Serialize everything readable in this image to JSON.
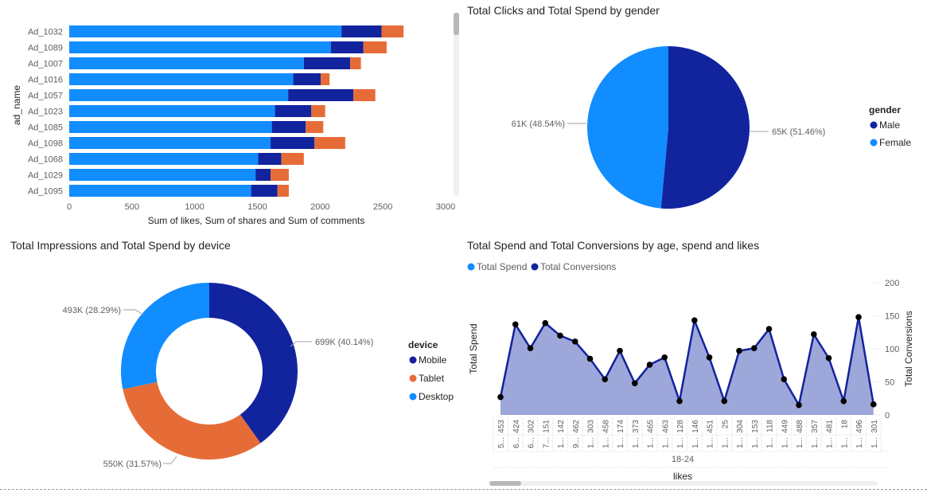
{
  "charts": {
    "bar": {
      "xlabel": "Sum of likes, Sum of shares and Sum of comments",
      "ylabel": "ad_name"
    },
    "pie": {
      "title": "Total Clicks and Total Spend by gender",
      "legend_title": "gender",
      "labels": [
        "65K (51.46%)",
        "61K (48.54%)"
      ]
    },
    "donut": {
      "title": "Total Impressions and Total Spend by device",
      "legend_title": "device",
      "labels": [
        "699K (40.14%)",
        "550K (31.57%)",
        "493K (28.29%)"
      ]
    },
    "area": {
      "title": "Total Spend and Total Conversions by age, spend and likes",
      "legend": [
        "Total Spend",
        "Total Conversions"
      ],
      "ylabel_left": "Total Spend",
      "ylabel_right": "Total Conversions",
      "xlabel": "likes",
      "group_label": "18-24"
    }
  },
  "colors": {
    "dark_blue": "#12239E",
    "light_blue": "#118DFF",
    "orange": "#E66C37",
    "area_fill": "#9EA7D9"
  },
  "chart_data": [
    {
      "type": "bar",
      "orientation": "horizontal",
      "stacked": true,
      "categories": [
        "Ad_1032",
        "Ad_1089",
        "Ad_1007",
        "Ad_1016",
        "Ad_1057",
        "Ad_1023",
        "Ad_1085",
        "Ad_1098",
        "Ad_1068",
        "Ad_1029",
        "Ad_1095"
      ],
      "series": [
        {
          "name": "Sum of likes",
          "color": "#118DFF",
          "values": [
            2170,
            2085,
            1870,
            1785,
            1745,
            1640,
            1615,
            1605,
            1505,
            1485,
            1450
          ]
        },
        {
          "name": "Sum of shares",
          "color": "#12239E",
          "values": [
            320,
            260,
            370,
            220,
            520,
            290,
            270,
            350,
            185,
            120,
            210
          ]
        },
        {
          "name": "Sum of comments",
          "color": "#E66C37",
          "values": [
            175,
            185,
            85,
            70,
            175,
            110,
            140,
            245,
            180,
            145,
            90
          ]
        }
      ],
      "xlim": [
        0,
        3000
      ],
      "xticks": [
        0,
        500,
        1000,
        1500,
        2000,
        2500,
        3000
      ],
      "xlabel": "Sum of likes, Sum of shares and Sum of comments",
      "ylabel": "ad_name",
      "grid": false
    },
    {
      "type": "pie",
      "title": "Total Clicks and Total Spend by gender",
      "legend_title": "gender",
      "legend_placement": "right",
      "slices": [
        {
          "name": "Male",
          "value": 65,
          "percent": 51.46,
          "label": "65K (51.46%)",
          "color": "#12239E"
        },
        {
          "name": "Female",
          "value": 61,
          "percent": 48.54,
          "label": "61K (48.54%)",
          "color": "#118DFF"
        }
      ]
    },
    {
      "type": "pie",
      "donut": true,
      "title": "Total Impressions and Total Spend by device",
      "legend_title": "device",
      "legend_placement": "right",
      "slices": [
        {
          "name": "Mobile",
          "value": 699,
          "percent": 40.14,
          "label": "699K (40.14%)",
          "color": "#12239E"
        },
        {
          "name": "Tablet",
          "value": 550,
          "percent": 31.57,
          "label": "550K (31.57%)",
          "color": "#E66C37"
        },
        {
          "name": "Desktop",
          "value": 493,
          "percent": 28.29,
          "label": "493K (28.29%)",
          "color": "#118DFF"
        }
      ]
    },
    {
      "type": "area",
      "title": "Total Spend and Total Conversions by age, spend and likes",
      "legend_placement": "top-left",
      "x": [
        "453",
        "424",
        "302",
        "151",
        "142",
        "462",
        "303",
        "458",
        "174",
        "373",
        "465",
        "463",
        "128",
        "146",
        "451",
        "25",
        "304",
        "153",
        "118",
        "449",
        "488",
        "357",
        "481",
        "18",
        "496",
        "301"
      ],
      "spend_labels": [
        "5...",
        "6...",
        "6...",
        "7...",
        "1...",
        "9...",
        "1...",
        "1...",
        "1...",
        "1...",
        "1...",
        "1...",
        "1...",
        "1...",
        "1...",
        "1...",
        "1...",
        "1...",
        "1...",
        "1...",
        "1...",
        "1...",
        "1...",
        "1...",
        "1...",
        "1..."
      ],
      "group": "18-24",
      "series": [
        {
          "name": "Total Conversions",
          "color": "#12239E",
          "values": [
            27,
            137,
            101,
            139,
            120,
            111,
            85,
            54,
            97,
            48,
            76,
            87,
            21,
            143,
            87,
            21,
            97,
            101,
            130,
            54,
            15,
            122,
            86,
            21,
            148,
            16
          ]
        }
      ],
      "y_right_lim": [
        0,
        200
      ],
      "y_right_ticks": [
        0,
        50,
        100,
        150,
        200
      ],
      "xlabel": "likes",
      "ylabel_left": "Total Spend",
      "ylabel_right": "Total Conversions"
    }
  ]
}
